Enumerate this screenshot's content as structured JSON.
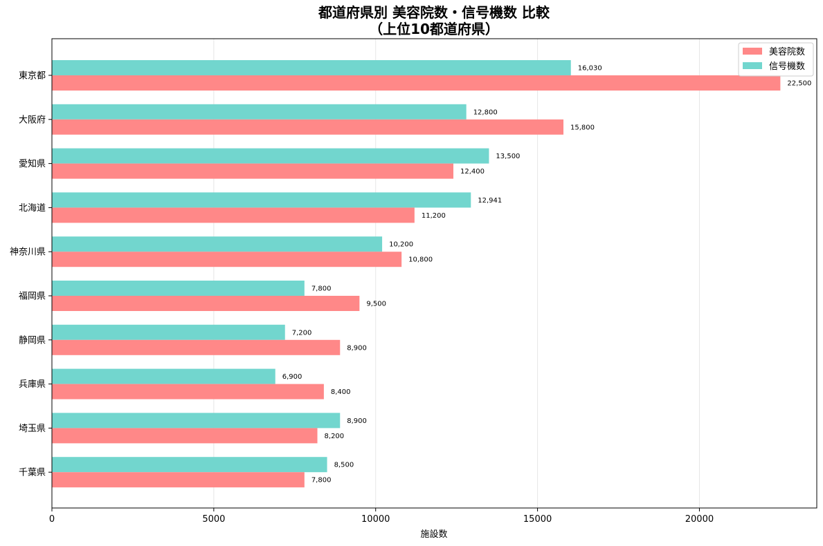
{
  "chart_data": {
    "type": "bar",
    "orientation": "horizontal",
    "title_line1": "都道府県別 美容院数・信号機数 比較",
    "title_line2": "（上位10都道府県）",
    "xlabel": "施設数",
    "ylabel": "",
    "xlim": [
      0,
      23625
    ],
    "xticks": [
      0,
      5000,
      10000,
      15000,
      20000
    ],
    "grid": "x",
    "legend_position": "top-right",
    "categories": [
      "東京都",
      "大阪府",
      "愛知県",
      "北海道",
      "神奈川県",
      "福岡県",
      "静岡県",
      "兵庫県",
      "埼玉県",
      "千葉県"
    ],
    "series": [
      {
        "name": "美容院数",
        "color": "#ff8888",
        "values": [
          22500,
          15800,
          12400,
          11200,
          10800,
          9500,
          8900,
          8400,
          8200,
          7800
        ],
        "labels": [
          "22,500",
          "15,800",
          "12,400",
          "11,200",
          "10,800",
          "9,500",
          "8,900",
          "8,400",
          "8,200",
          "7,800"
        ]
      },
      {
        "name": "信号機数",
        "color": "#72d6ce",
        "values": [
          16030,
          12800,
          13500,
          12941,
          10200,
          7800,
          7200,
          6900,
          8900,
          8500
        ],
        "labels": [
          "16,030",
          "12,800",
          "13,500",
          "12,941",
          "10,200",
          "7,800",
          "7,200",
          "6,900",
          "8,900",
          "8,500"
        ]
      }
    ]
  }
}
